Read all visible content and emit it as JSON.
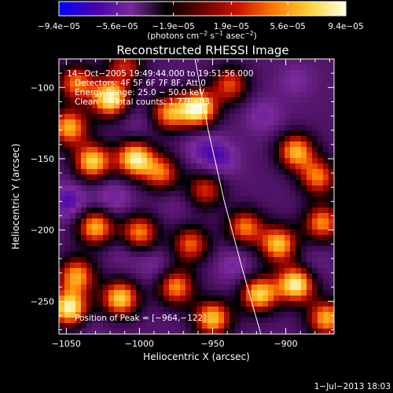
{
  "chart_data": {
    "type": "heatmap",
    "title": "Reconstructed RHESSI Image",
    "xlabel": "Heliocentric X (arcsec)",
    "ylabel": "Heliocentric Y (arcsec)",
    "xlim": [
      -1055,
      -867
    ],
    "ylim": [
      -273,
      -80
    ],
    "x_ticks": [
      -1050,
      -1000,
      -950,
      -900
    ],
    "x_tick_labels": [
      "−1050",
      "−1000",
      "−950",
      "−900"
    ],
    "y_ticks": [
      -100,
      -150,
      -200,
      -250
    ],
    "y_tick_labels": [
      "−100",
      "−150",
      "−200",
      "−250"
    ],
    "colorbar": {
      "range": [
        -9.4e-05,
        9.4e-05
      ],
      "tick_values": [
        -9.4e-05,
        -5.6e-05,
        -1.9e-05,
        1.9e-05,
        5.6e-05,
        9.4e-05
      ],
      "tick_labels": [
        "−9.4e−05",
        "−5.6e−05",
        "−1.9e−05",
        "1.9e−05",
        "5.6e−05",
        "9.4e−05"
      ],
      "unit_main": "(photons cm",
      "unit_sup1": "−2",
      "unit_mid": " s",
      "unit_sup2": "−1",
      "unit_mid2": " asec",
      "unit_sup3": "−2",
      "unit_end": ")",
      "colors": [
        "#0000ff",
        "#4400aa",
        "#7a2a9a",
        "#000000",
        "#6a0000",
        "#c81400",
        "#ff7a00",
        "#ffd23c",
        "#ffffe6"
      ]
    },
    "annotations": {
      "time_range": "14−Oct−2005 19:49:44.000 to 19:51:56.000",
      "detectors": "Detectors: 4F 5F 6F 7F 8F, Att 0",
      "energy": "Energy Range: 25.0 − 50.0 keV",
      "clean_label": "Clean",
      "total_counts": "Total counts: 1.77E+03",
      "peak": "Position of Peak = [−964,−122]"
    },
    "limb_curve": [
      [
        -962,
        -80
      ],
      [
        -953,
        -130
      ],
      [
        -942,
        -180
      ],
      [
        -929,
        -230
      ],
      [
        -917,
        -273
      ]
    ],
    "blobs": [
      {
        "x": -1043,
        "y": -97,
        "v": 0.55
      },
      {
        "x": -1020,
        "y": -108,
        "v": 0.95
      },
      {
        "x": -1010,
        "y": -85,
        "v": 0.35
      },
      {
        "x": -980,
        "y": -118,
        "v": 0.6
      },
      {
        "x": -960,
        "y": -115,
        "v": 1.0
      },
      {
        "x": -938,
        "y": -98,
        "v": 0.45
      },
      {
        "x": -1048,
        "y": -128,
        "v": 0.7
      },
      {
        "x": -1032,
        "y": -152,
        "v": 0.8
      },
      {
        "x": -1003,
        "y": -150,
        "v": 0.9
      },
      {
        "x": -985,
        "y": -160,
        "v": 0.5
      },
      {
        "x": -955,
        "y": -172,
        "v": 0.4
      },
      {
        "x": -893,
        "y": -145,
        "v": 0.7
      },
      {
        "x": -878,
        "y": -163,
        "v": 0.55
      },
      {
        "x": -1030,
        "y": -198,
        "v": 0.7
      },
      {
        "x": -1000,
        "y": -202,
        "v": 0.6
      },
      {
        "x": -965,
        "y": -210,
        "v": 0.5
      },
      {
        "x": -928,
        "y": -198,
        "v": 0.55
      },
      {
        "x": -905,
        "y": -210,
        "v": 0.75
      },
      {
        "x": -875,
        "y": -195,
        "v": 0.6
      },
      {
        "x": -1043,
        "y": -232,
        "v": 0.65
      },
      {
        "x": -1048,
        "y": -255,
        "v": 0.95
      },
      {
        "x": -1013,
        "y": -248,
        "v": 0.8
      },
      {
        "x": -975,
        "y": -240,
        "v": 0.6
      },
      {
        "x": -950,
        "y": -262,
        "v": 0.75
      },
      {
        "x": -918,
        "y": -245,
        "v": 0.8
      },
      {
        "x": -893,
        "y": -238,
        "v": 0.95
      },
      {
        "x": -872,
        "y": -262,
        "v": 0.7
      },
      {
        "x": -1048,
        "y": -180,
        "v": -0.7
      },
      {
        "x": -1018,
        "y": -178,
        "v": -0.6
      },
      {
        "x": -958,
        "y": -142,
        "v": -0.55
      },
      {
        "x": -945,
        "y": -150,
        "v": -0.65
      },
      {
        "x": -915,
        "y": -120,
        "v": -0.55
      },
      {
        "x": -893,
        "y": -95,
        "v": -0.5
      },
      {
        "x": -1000,
        "y": -125,
        "v": -0.45
      },
      {
        "x": -990,
        "y": -225,
        "v": -0.5
      },
      {
        "x": -935,
        "y": -225,
        "v": -0.55
      },
      {
        "x": -975,
        "y": -182,
        "v": -0.4
      },
      {
        "x": -1035,
        "y": -268,
        "v": -0.4
      },
      {
        "x": -882,
        "y": -225,
        "v": -0.45
      },
      {
        "x": -1010,
        "y": -215,
        "v": -0.45
      }
    ]
  },
  "footer": {
    "timestamp": "1−Jul−2013 18:03"
  }
}
